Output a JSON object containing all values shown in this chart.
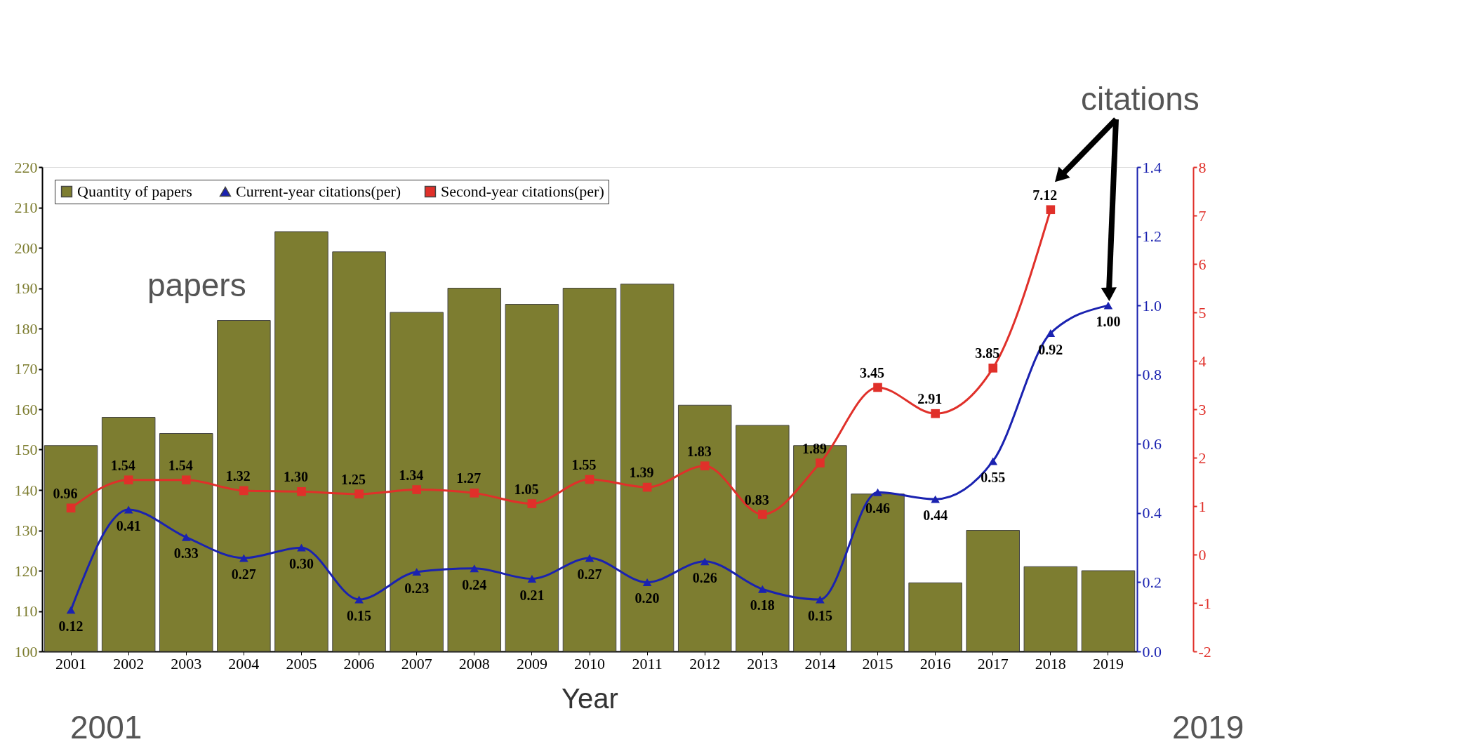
{
  "chart_data": {
    "type": "bar",
    "xlabel": "Year",
    "categories": [
      "2001",
      "2002",
      "2003",
      "2004",
      "2005",
      "2006",
      "2007",
      "2008",
      "2009",
      "2010",
      "2011",
      "2012",
      "2013",
      "2014",
      "2015",
      "2016",
      "2017",
      "2018",
      "2019"
    ],
    "series": [
      {
        "name": "Quantity of  papers",
        "color": "#7d7d30",
        "values": [
          151,
          158,
          154,
          182,
          204,
          199,
          184,
          190,
          186,
          190,
          191,
          161,
          156,
          151,
          139,
          117,
          130,
          121,
          120
        ]
      },
      {
        "name": "Current-year citations(per)",
        "type": "line",
        "axis": "y2",
        "marker": "triangle",
        "color": "#1a22b0",
        "values": [
          0.12,
          0.41,
          0.33,
          0.27,
          0.3,
          0.15,
          0.23,
          0.24,
          0.21,
          0.27,
          0.2,
          0.26,
          0.18,
          0.15,
          0.46,
          0.44,
          0.55,
          0.92,
          1.0
        ],
        "value_labels": [
          "0.12",
          "0.41",
          "0.33",
          "0.27",
          "0.30",
          "0.15",
          "0.23",
          "0.24",
          "0.21",
          "0.27",
          "0.20",
          "0.26",
          "0.18",
          "0.15",
          "0.46",
          "0.44",
          "0.55",
          "0.92",
          "1.00"
        ]
      },
      {
        "name": "Second-year citations(per)",
        "type": "line",
        "axis": "y3",
        "marker": "square",
        "color": "#e0302a",
        "values": [
          0.96,
          1.54,
          1.54,
          1.32,
          1.3,
          1.25,
          1.34,
          1.27,
          1.05,
          1.55,
          1.39,
          1.83,
          0.83,
          1.89,
          3.45,
          2.91,
          3.85,
          7.12,
          null
        ],
        "value_labels": [
          "0.96",
          "1.54",
          "1.54",
          "1.32",
          "1.30",
          "1.25",
          "1.34",
          "1.27",
          "1.05",
          "1.55",
          "1.39",
          "1.83",
          "0.83",
          "1.89",
          "3.45",
          "2.91",
          "3.85",
          "7.12",
          null
        ]
      }
    ],
    "ylim": [
      100,
      220
    ],
    "yticks": [
      100,
      110,
      120,
      130,
      140,
      150,
      160,
      170,
      180,
      190,
      200,
      210,
      220
    ],
    "y2lim": [
      0,
      1.4
    ],
    "y2ticks": [
      {
        "value": 0,
        "label": "0.0"
      },
      0.2,
      0.4,
      0.6,
      0.8,
      {
        "value": 1,
        "label": "1.0"
      },
      1.2,
      1.4
    ],
    "y3lim": [
      -2,
      8
    ],
    "y3ticks": [
      -2,
      -1,
      0,
      1,
      2,
      3,
      4,
      5,
      6,
      7,
      8
    ],
    "grid": false,
    "legend": "top left",
    "line_style": "solid",
    "annotations": [
      "papers",
      "citations",
      "2001",
      "2019"
    ]
  }
}
